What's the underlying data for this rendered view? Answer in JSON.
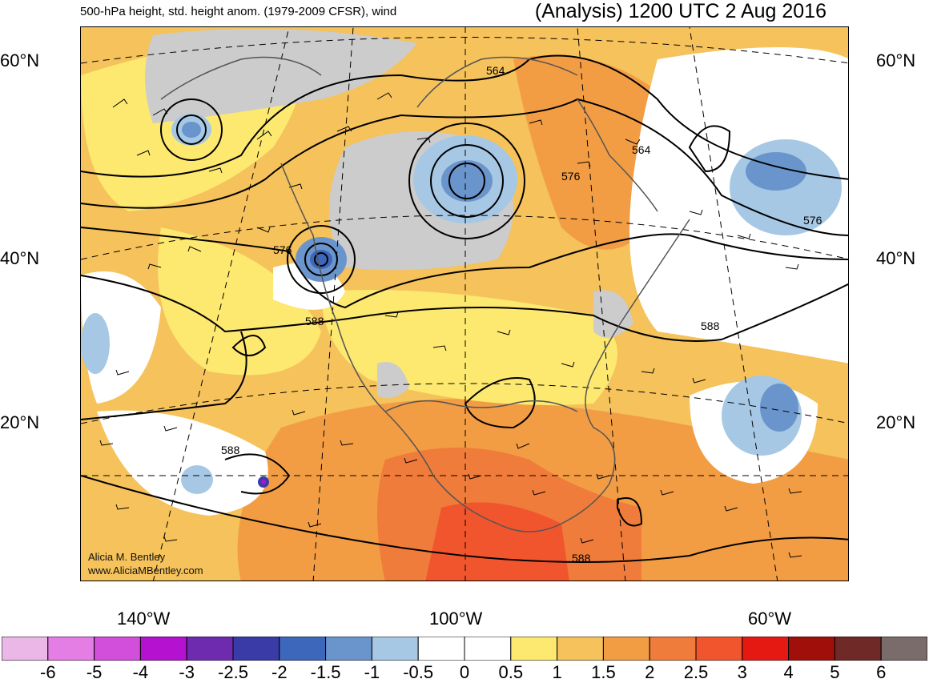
{
  "header": {
    "left_title": "500-hPa height, std. height anom. (1979-2009 CFSR), wind",
    "right_title": "(Analysis) 1200 UTC 2 Aug 2016"
  },
  "map": {
    "lat_labels": [
      "60°N",
      "40°N",
      "20°N"
    ],
    "lon_labels": [
      "140°W",
      "100°W",
      "60°W"
    ],
    "contour_labels": [
      "564",
      "564",
      "576",
      "576",
      "576",
      "588",
      "588",
      "588",
      "588"
    ],
    "credit_line1": "Alicia M. Bentley",
    "credit_line2": "www.AliciaMBentley.com"
  },
  "colorbar": {
    "colors": [
      "#ebb7e7",
      "#e47de4",
      "#d24fdb",
      "#b511d1",
      "#6e2bb0",
      "#3b3ba8",
      "#3c67ba",
      "#6a95cc",
      "#a6c8e5",
      "#ffffff",
      "#ffffff",
      "#fde870",
      "#f5c25b",
      "#f29d44",
      "#ef7c3a",
      "#f1552e",
      "#e61912",
      "#a10f0b",
      "#6f2926",
      "#7a6c6a"
    ],
    "labels": [
      "-6",
      "-5",
      "-4",
      "-3",
      "-2.5",
      "-2",
      "-1.5",
      "-1",
      "-0.5",
      "0",
      "0.5",
      "1",
      "1.5",
      "2",
      "2.5",
      "3",
      "4",
      "5",
      "6"
    ]
  }
}
